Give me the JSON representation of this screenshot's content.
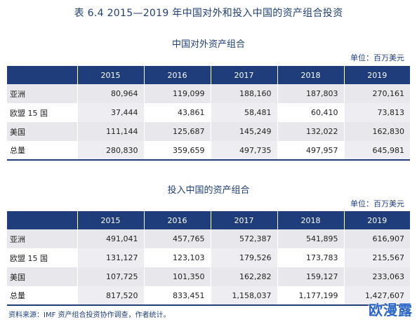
{
  "page_title": "表 6.4   2015—2019 年中国对外和投入中国的资产组合投资",
  "unit_label": "单位：百万美元",
  "source": "资料来源：IMF 资产组合投资协作调查，作者统计。",
  "watermark": "欧漫露",
  "tables": [
    {
      "title": "中国对外资产组合",
      "years": [
        "2015",
        "2016",
        "2017",
        "2018",
        "2019"
      ],
      "rows": [
        {
          "label": "亚洲",
          "values": [
            "80,964",
            "119,099",
            "188,160",
            "187,803",
            "270,161"
          ]
        },
        {
          "label": "欧盟 15 国",
          "values": [
            "37,444",
            "43,861",
            "58,481",
            "60,410",
            "73,813"
          ]
        },
        {
          "label": "美国",
          "values": [
            "111,144",
            "125,687",
            "145,249",
            "132,022",
            "162,830"
          ]
        },
        {
          "label": "总量",
          "values": [
            "280,830",
            "359,659",
            "497,735",
            "497,957",
            "645,981"
          ]
        }
      ]
    },
    {
      "title": "投入中国的资产组合",
      "years": [
        "2015",
        "2016",
        "2017",
        "2018",
        "2019"
      ],
      "rows": [
        {
          "label": "亚洲",
          "values": [
            "491,041",
            "457,765",
            "572,387",
            "541,895",
            "616,907"
          ]
        },
        {
          "label": "欧盟 15 国",
          "values": [
            "131,127",
            "123,103",
            "179,526",
            "173,783",
            "215,567"
          ]
        },
        {
          "label": "美国",
          "values": [
            "107,725",
            "101,350",
            "162,282",
            "159,127",
            "233,063"
          ]
        },
        {
          "label": "总量",
          "values": [
            "817,520",
            "833,451",
            "1,158,037",
            "1,177,199",
            "1,427,607"
          ]
        }
      ]
    }
  ]
}
